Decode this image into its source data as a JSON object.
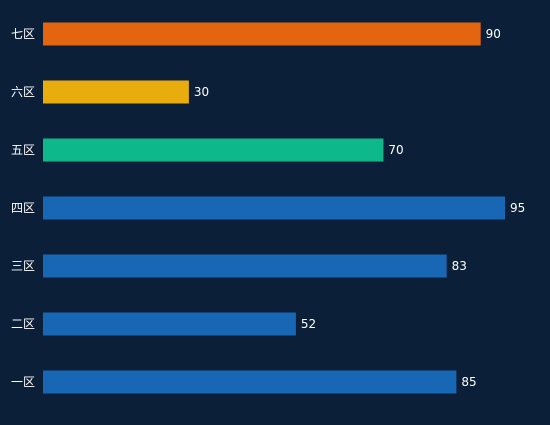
{
  "chart_data": {
    "type": "bar",
    "orientation": "horizontal",
    "categories": [
      "七区",
      "六区",
      "五区",
      "四区",
      "三区",
      "二区",
      "一区"
    ],
    "values": [
      90,
      30,
      70,
      95,
      83,
      52,
      85
    ],
    "colors": [
      "#e3650f",
      "#e8ac0c",
      "#0db88a",
      "#1767b5",
      "#1767b5",
      "#1767b5",
      "#1767b5"
    ],
    "title": "",
    "xlabel": "",
    "ylabel": "",
    "xlim": [
      0,
      95
    ],
    "grid": false,
    "legend": "none",
    "data_labels": true
  },
  "theme": {
    "background": "#0c1f39",
    "text_color": "#ffffff"
  }
}
